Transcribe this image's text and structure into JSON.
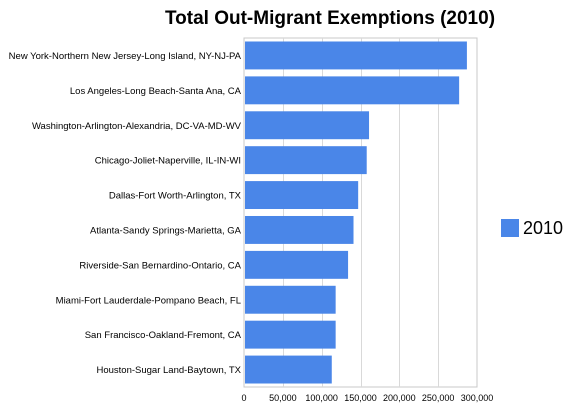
{
  "chart_data": {
    "type": "bar",
    "orientation": "horizontal",
    "title": "Total Out-Migrant Exemptions (2010)",
    "xlabel": "",
    "ylabel": "",
    "xlim": [
      0,
      300000
    ],
    "ticks": [
      {
        "value": 0,
        "label": "0"
      },
      {
        "value": 50000,
        "label": "50,000"
      },
      {
        "value": 100000,
        "label": "100,000"
      },
      {
        "value": 150000,
        "label": "150,000"
      },
      {
        "value": 200000,
        "label": "200,000"
      },
      {
        "value": 250000,
        "label": "250,000"
      },
      {
        "value": 300000,
        "label": "300,000"
      }
    ],
    "categories": [
      "New York-Northern New Jersey-Long Island, NY-NJ-PA",
      "Los Angeles-Long Beach-Santa Ana, CA",
      "Washington-Arlington-Alexandria, DC-VA-MD-WV",
      "Chicago-Joliet-Naperville, IL-IN-WI",
      "Dallas-Fort Worth-Arlington, TX",
      "Atlanta-Sandy Springs-Marietta, GA",
      "Riverside-San Bernardino-Ontario, CA",
      "Miami-Fort Lauderdale-Pompano Beach, FL",
      "San Francisco-Oakland-Fremont, CA",
      "Houston-Sugar Land-Baytown, TX"
    ],
    "series": [
      {
        "name": "2010",
        "color": "#4a86e8",
        "values": [
          287000,
          277000,
          161000,
          158000,
          147000,
          141000,
          134000,
          118000,
          118000,
          113000
        ]
      }
    ],
    "grid": true,
    "legend": "right"
  }
}
